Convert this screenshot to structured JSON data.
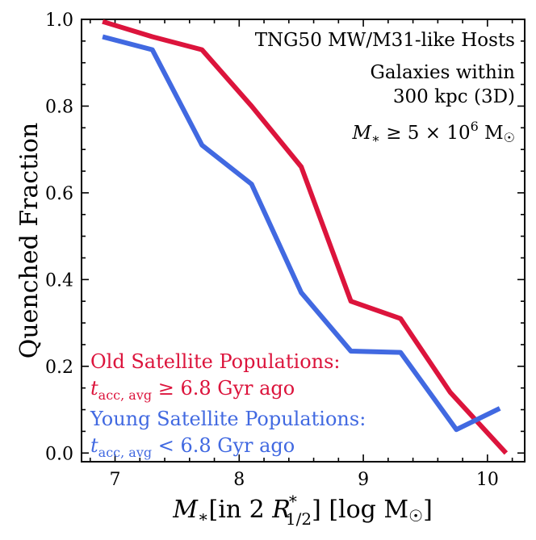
{
  "chart_data": {
    "type": "line",
    "ylabel": "Quenched Fraction",
    "xlabel": {
      "symbol": "M",
      "sub": "∗",
      "bracket1_pre": "[in 2 ",
      "r_symbol": "R",
      "r_sup": "*",
      "r_sub": "1/2",
      "bracket1_post": "] [log M",
      "sun": "☉",
      "bracket2_close": "]"
    },
    "xlim": [
      6.73,
      10.3
    ],
    "ylim": [
      -0.02,
      1.0
    ],
    "xticks": [
      7,
      8,
      9,
      10
    ],
    "yticks": [
      0.0,
      0.2,
      0.4,
      0.6,
      0.8,
      1.0
    ],
    "xtick_labels": [
      "7",
      "8",
      "9",
      "10"
    ],
    "ytick_labels": [
      "0.0",
      "0.2",
      "0.4",
      "0.6",
      "0.8",
      "1.0"
    ],
    "annotations": {
      "line1": "TNG50 MW/M31-like Hosts",
      "line2": "Galaxies within",
      "line3": "300 kpc (3D)",
      "mass_cut": {
        "symbol": "M",
        "sub": "∗",
        "op": " ≥ 5 × 10",
        "exp": "6",
        "unit": " M",
        "sun": "☉"
      }
    },
    "series": [
      {
        "name": "Old Satellite Populations:",
        "condition": {
          "symbol": "t",
          "sub": "acc, avg",
          "rest": " ≥ 6.8 Gyr ago"
        },
        "color": "#dc143c",
        "x": [
          6.9,
          7.3,
          7.7,
          8.1,
          8.5,
          8.9,
          9.3,
          9.7,
          10.15
        ],
        "y": [
          0.995,
          0.96,
          0.93,
          0.8,
          0.66,
          0.35,
          0.31,
          0.14,
          0.0
        ]
      },
      {
        "name": "Young Satellite Populations:",
        "condition": {
          "symbol": "t",
          "sub": "acc, avg",
          "rest": " < 6.8 Gyr ago"
        },
        "color": "#4169e1",
        "x": [
          6.9,
          7.3,
          7.7,
          8.1,
          8.5,
          8.9,
          9.3,
          9.75,
          10.1
        ],
        "y": [
          0.96,
          0.93,
          0.71,
          0.62,
          0.37,
          0.235,
          0.232,
          0.054,
          0.103
        ]
      }
    ]
  }
}
